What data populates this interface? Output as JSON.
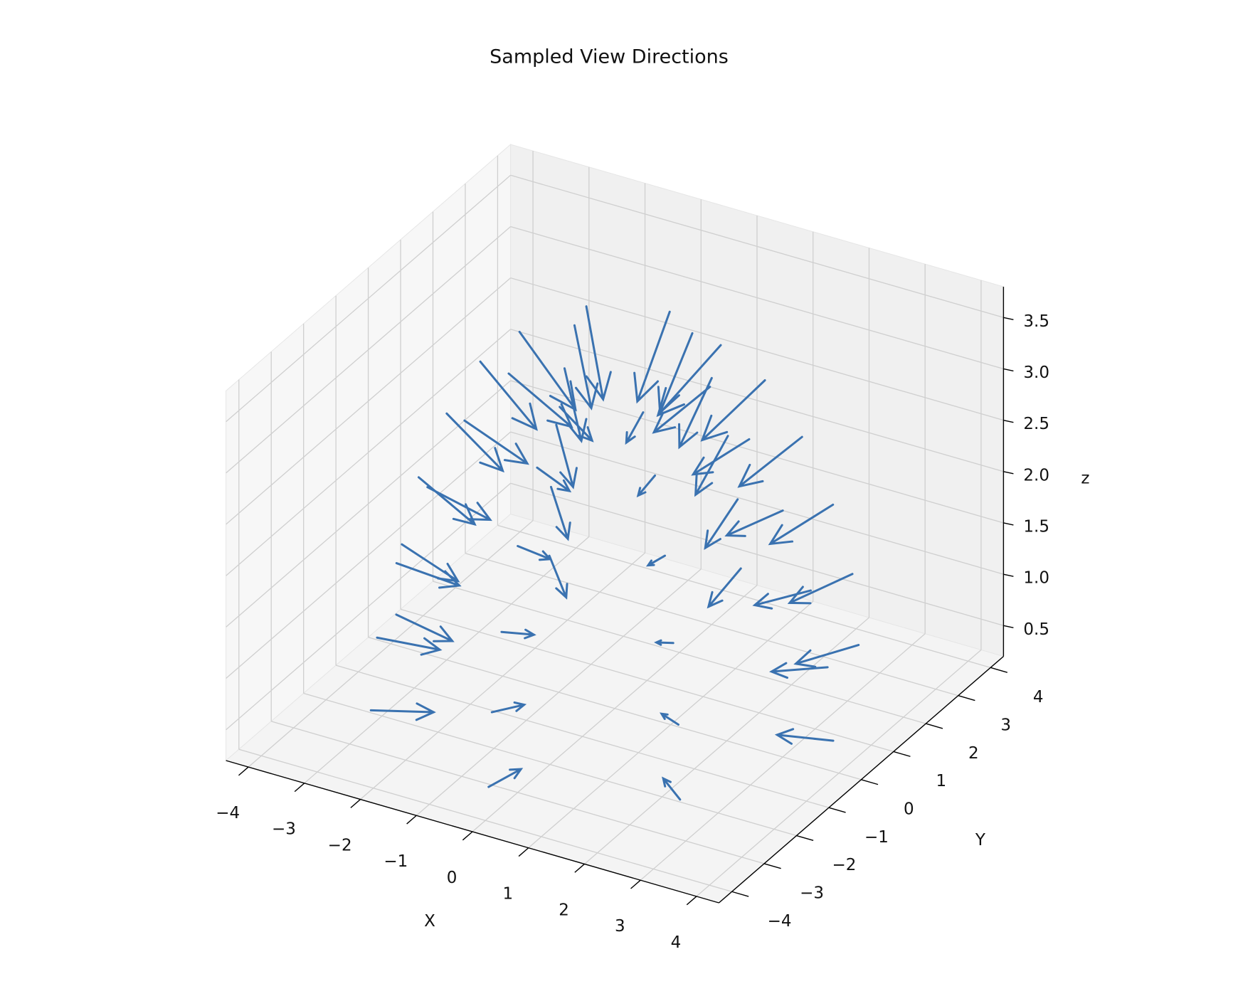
{
  "chart_data": {
    "type": "quiver3d",
    "title": "Sampled View Directions",
    "xlabel": "X",
    "ylabel": "Y",
    "zlabel": "z",
    "color": "#3a72b0",
    "xlim": [
      -4.4,
      4.4
    ],
    "ylim": [
      -4.4,
      4.4
    ],
    "zlim": [
      0.2,
      3.8
    ],
    "xticks": [
      {
        "value": -4,
        "label": "−4"
      },
      {
        "value": -3,
        "label": "−3"
      },
      {
        "value": -2,
        "label": "−2"
      },
      {
        "value": -1,
        "label": "−1"
      },
      0,
      1,
      2,
      3,
      4
    ],
    "yticks": [
      {
        "value": -4,
        "label": "−4"
      },
      {
        "value": -3,
        "label": "−3"
      },
      {
        "value": -2,
        "label": "−2"
      },
      {
        "value": -1,
        "label": "−1"
      },
      0,
      1,
      2,
      3,
      4
    ],
    "zticks": [
      0.5,
      {
        "value": 1,
        "label": "1.0"
      },
      1.5,
      {
        "value": 2,
        "label": "2.0"
      },
      2.5,
      {
        "value": 3,
        "label": "3.0"
      },
      3.5
    ],
    "grid": true,
    "x": [
      3.9,
      2.76,
      0,
      -2.76,
      -3.9,
      -2.76,
      0,
      2.76,
      3.8,
      2.69,
      0,
      -2.69,
      -3.8,
      -2.69,
      0,
      2.69,
      3.5,
      2.47,
      0,
      -2.47,
      -3.5,
      -2.47,
      0,
      2.47,
      3.0,
      2.12,
      0,
      -2.12,
      -3.0,
      -2.12,
      0,
      2.12,
      2.4,
      1.7,
      0,
      -1.7,
      -2.4,
      -1.7,
      0,
      1.7,
      1.7,
      1.2,
      0,
      -1.2,
      -1.7,
      -1.2,
      0,
      1.2
    ],
    "y": [
      0,
      2.76,
      3.9,
      2.76,
      0,
      -2.76,
      -3.9,
      -2.76,
      0,
      2.69,
      3.8,
      2.69,
      0,
      -2.69,
      -3.8,
      -2.69,
      0,
      2.47,
      3.5,
      2.47,
      0,
      -2.47,
      -3.5,
      -2.47,
      0,
      2.12,
      3.0,
      2.12,
      0,
      -2.12,
      -3.0,
      -2.12,
      0,
      1.7,
      2.4,
      1.7,
      0,
      -1.7,
      -2.4,
      -1.7,
      0,
      1.2,
      1.7,
      1.2,
      0,
      -1.2,
      -1.7,
      -1.2
    ],
    "z": [
      0.5,
      0.5,
      0.5,
      0.5,
      0.5,
      0.5,
      0.5,
      0.5,
      1.2,
      1.2,
      1.2,
      1.2,
      1.2,
      1.2,
      1.2,
      1.2,
      1.9,
      1.9,
      1.9,
      1.9,
      1.9,
      1.9,
      1.9,
      1.9,
      2.6,
      2.6,
      2.6,
      2.6,
      2.6,
      2.6,
      2.6,
      2.6,
      3.2,
      3.2,
      3.2,
      3.2,
      3.2,
      3.2,
      3.2,
      3.2,
      3.6,
      3.6,
      3.6,
      3.6,
      3.6,
      3.6,
      3.6,
      3.6
    ],
    "u": [
      -1,
      -0.71,
      0,
      0.71,
      1,
      0.71,
      0,
      -0.71,
      -1,
      -0.71,
      0,
      0.71,
      1,
      0.71,
      0,
      -0.71,
      -1,
      -0.71,
      0,
      0.71,
      1,
      0.71,
      0,
      -0.71,
      -1,
      -0.71,
      0,
      0.71,
      1,
      0.71,
      0,
      -0.71,
      -1,
      -0.71,
      0,
      0.71,
      1,
      0.71,
      0,
      -0.71,
      -1,
      -0.71,
      0,
      0.71,
      1,
      0.71,
      0,
      -0.71
    ],
    "v": [
      0,
      -0.71,
      -1,
      -0.71,
      0,
      0.71,
      1,
      0.71,
      0,
      -0.71,
      -1,
      -0.71,
      0,
      0.71,
      1,
      0.71,
      0,
      -0.71,
      -1,
      -0.71,
      0,
      0.71,
      1,
      0.71,
      0,
      -0.71,
      -1,
      -0.71,
      0,
      0.71,
      1,
      0.71,
      0,
      -0.71,
      -1,
      -0.71,
      0,
      0.71,
      1,
      0.71,
      0,
      -0.71,
      -1,
      -0.71,
      0,
      0.71,
      1,
      0.71
    ],
    "w": [
      -0.1,
      -0.1,
      -0.1,
      -0.1,
      -0.1,
      -0.1,
      -0.1,
      -0.1,
      -0.2,
      -0.2,
      -0.2,
      -0.2,
      -0.2,
      -0.2,
      -0.2,
      -0.2,
      -0.3,
      -0.3,
      -0.3,
      -0.3,
      -0.3,
      -0.3,
      -0.3,
      -0.3,
      -0.4,
      -0.4,
      -0.4,
      -0.4,
      -0.4,
      -0.4,
      -0.4,
      -0.4,
      -0.5,
      -0.5,
      -0.5,
      -0.5,
      -0.5,
      -0.5,
      -0.5,
      -0.5,
      -0.6,
      -0.6,
      -0.6,
      -0.6,
      -0.6,
      -0.6,
      -0.6,
      -0.6
    ]
  }
}
